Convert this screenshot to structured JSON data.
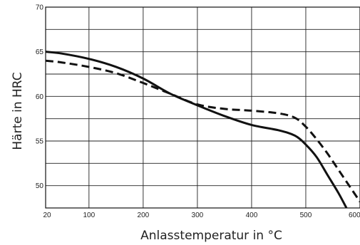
{
  "chart_data": {
    "type": "line",
    "title": "",
    "xlabel": "Anlasstemperatur in °C",
    "ylabel": "Härte in HRC",
    "xlim": [
      20,
      600
    ],
    "ylim": [
      47.5,
      70
    ],
    "x_ticks": [
      20,
      100,
      200,
      300,
      400,
      500,
      600
    ],
    "y_ticks": [
      50,
      55,
      60,
      65,
      70
    ],
    "grid": true,
    "legend": "none",
    "colors": {
      "line": "#111111",
      "grid": "#222222"
    },
    "series": [
      {
        "style": "solid",
        "x": [
          20,
          50,
          100,
          150,
          200,
          250,
          300,
          350,
          400,
          450,
          480,
          500,
          520,
          540,
          560,
          575
        ],
        "y": [
          65,
          64.8,
          64.2,
          63.3,
          62.0,
          60.3,
          59.0,
          57.8,
          56.8,
          56.2,
          55.6,
          54.6,
          53.2,
          51.2,
          49.2,
          47.5
        ]
      },
      {
        "style": "dashed",
        "x": [
          20,
          50,
          100,
          150,
          200,
          250,
          300,
          350,
          400,
          450,
          480,
          500,
          520,
          540,
          560,
          580,
          600
        ],
        "y": [
          64,
          63.8,
          63.3,
          62.6,
          61.5,
          60.3,
          59.1,
          58.6,
          58.4,
          58.1,
          57.6,
          56.6,
          55.2,
          53.6,
          51.8,
          50.0,
          48.2
        ]
      }
    ]
  }
}
